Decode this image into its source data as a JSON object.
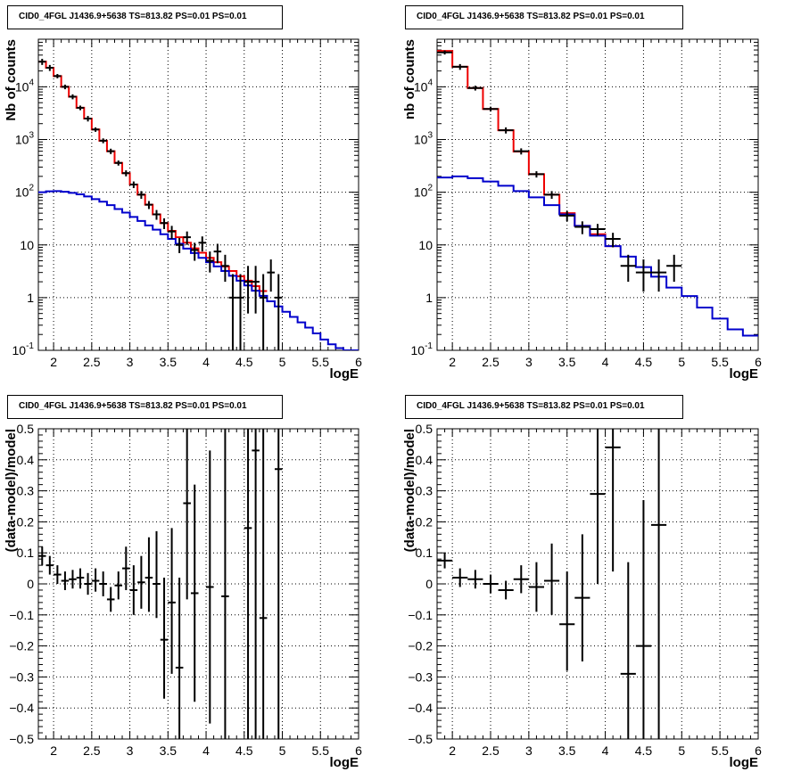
{
  "colors": {
    "data": "#000000",
    "total_model": "#ee0000",
    "component_model": "#0000cc",
    "grid": "#000000"
  },
  "chart_data": [
    {
      "type": "line",
      "title": "CID0_4FGL J1436.9+5638 TS=813.82 PS=0.01 PS=0.01",
      "xlabel": "logE",
      "ylabel": "Nb of counts",
      "yscale": "log",
      "xlim": [
        1.8,
        6
      ],
      "ylim": [
        0.1,
        80000
      ],
      "grid": true,
      "x_ticks": [
        "2",
        "2.5",
        "3",
        "3.5",
        "4",
        "4.5",
        "5",
        "5.5",
        "6"
      ],
      "y_ticks": [
        "10^-1",
        "1",
        "10",
        "10^2",
        "10^3",
        "10^4"
      ],
      "bins": {
        "start": 1.8,
        "width": 0.1
      },
      "series": [
        {
          "style": "step",
          "color": "total_model",
          "values": [
            30000,
            23000,
            16000,
            10000,
            6500,
            4000,
            2500,
            1550,
            950,
            600,
            360,
            230,
            140,
            90,
            58,
            38,
            26,
            18.5,
            14,
            11,
            8.6,
            7.1,
            5.7,
            4.7,
            3.9,
            3.2,
            2.55,
            2.1,
            1.65,
            1.33
          ]
        },
        {
          "style": "step",
          "color": "component_model",
          "values": [
            100,
            104,
            105,
            102,
            97,
            91,
            83,
            74,
            66,
            57,
            48,
            41,
            34,
            28.5,
            23.5,
            19.5,
            16,
            13,
            10.5,
            8.5,
            7,
            5.7,
            4.7,
            3.9,
            3.2,
            2.6,
            2.1,
            1.7,
            1.35,
            1.08,
            0.85,
            0.68,
            0.54,
            0.43,
            0.34,
            0.27,
            0.21,
            0.16,
            0.13,
            0.11,
            0.1,
            0.09
          ]
        },
        {
          "style": "errorbar",
          "color": "data",
          "points": [
            [
              1.85,
              30000,
              26000,
              34000
            ],
            [
              1.95,
              23000,
              20000,
              26000
            ],
            [
              2.05,
              16000,
              14500,
              17500
            ],
            [
              2.15,
              10000,
              9000,
              11000
            ],
            [
              2.25,
              6500,
              5800,
              7200
            ],
            [
              2.35,
              4000,
              3600,
              4400
            ],
            [
              2.45,
              2500,
              2200,
              2800
            ],
            [
              2.55,
              1550,
              1400,
              1700
            ],
            [
              2.65,
              950,
              850,
              1050
            ],
            [
              2.75,
              600,
              530,
              670
            ],
            [
              2.85,
              360,
              320,
              400
            ],
            [
              2.95,
              230,
              200,
              260
            ],
            [
              3.05,
              140,
              120,
              160
            ],
            [
              3.15,
              90,
              75,
              105
            ],
            [
              3.25,
              58,
              48,
              68
            ],
            [
              3.35,
              38,
              30,
              46
            ],
            [
              3.45,
              26,
              20,
              32
            ],
            [
              3.55,
              18,
              13,
              23
            ],
            [
              3.65,
              10,
              7,
              13.5
            ],
            [
              3.75,
              14,
              10,
              18
            ],
            [
              3.85,
              8,
              5,
              11
            ],
            [
              3.95,
              11,
              7.5,
              14.5
            ],
            [
              4.05,
              5,
              3,
              7.5
            ],
            [
              4.15,
              7.5,
              4.5,
              10.5
            ],
            [
              4.25,
              4,
              2,
              6.5
            ],
            [
              4.35,
              1,
              0.1,
              2.8
            ],
            [
              4.45,
              1,
              0.1,
              2.8
            ],
            [
              4.55,
              2,
              0.5,
              4
            ],
            [
              4.65,
              2,
              0.5,
              4
            ],
            [
              4.75,
              1,
              0.1,
              2.8
            ],
            [
              4.85,
              3,
              1.3,
              5.3
            ],
            [
              4.95,
              1,
              0.1,
              2.8
            ]
          ]
        }
      ]
    },
    {
      "type": "line",
      "title": "CID0_4FGL J1436.9+5638 TS=813.82 PS=0.01 PS=0.01",
      "xlabel": "logE",
      "ylabel": "nb of counts",
      "yscale": "log",
      "xlim": [
        1.8,
        6
      ],
      "ylim": [
        0.1,
        80000
      ],
      "grid": true,
      "x_ticks": [
        "2",
        "2.5",
        "3",
        "3.5",
        "4",
        "4.5",
        "5",
        "5.5",
        "6"
      ],
      "y_ticks": [
        "10^-1",
        "1",
        "10",
        "10^2",
        "10^3",
        "10^4"
      ],
      "bins": {
        "start": 1.8,
        "width": 0.2
      },
      "series": [
        {
          "style": "step",
          "color": "total_model",
          "values": [
            48000,
            24000,
            9500,
            3800,
            1500,
            590,
            220,
            90,
            40,
            23,
            16,
            9.5
          ]
        },
        {
          "style": "step",
          "color": "component_model",
          "values": [
            190,
            200,
            185,
            160,
            133,
            105,
            80,
            57,
            38,
            23,
            15,
            9.5,
            6,
            3.8,
            2.5,
            1.55,
            1.07,
            0.65,
            0.4,
            0.25,
            0.19
          ]
        },
        {
          "style": "errorbar",
          "color": "data",
          "points": [
            [
              1.9,
              45000,
              41000,
              49000
            ],
            [
              2.1,
              24000,
              21000,
              27000
            ],
            [
              2.3,
              9500,
              8500,
              10500
            ],
            [
              2.5,
              3800,
              3400,
              4200
            ],
            [
              2.7,
              1500,
              1300,
              1700
            ],
            [
              2.9,
              600,
              520,
              680
            ],
            [
              3.1,
              220,
              190,
              250
            ],
            [
              3.3,
              90,
              75,
              105
            ],
            [
              3.5,
              36,
              28,
              44
            ],
            [
              3.7,
              22,
              16,
              28
            ],
            [
              3.9,
              20,
              15,
              25
            ],
            [
              4.1,
              13,
              9,
              17
            ],
            [
              4.3,
              4,
              2,
              6.5
            ],
            [
              4.5,
              3,
              1.3,
              5.3
            ],
            [
              4.7,
              3,
              1.3,
              5.3
            ],
            [
              4.9,
              4,
              2,
              6.5
            ]
          ]
        }
      ]
    },
    {
      "type": "scatter",
      "title": "CID0_4FGL J1436.9+5638 TS=813.82 PS=0.01 PS=0.01",
      "xlabel": "logE",
      "ylabel": "(data-model)/model",
      "xlim": [
        1.8,
        6
      ],
      "ylim": [
        -0.5,
        0.5
      ],
      "grid": true,
      "x_ticks": [
        "2",
        "2.5",
        "3",
        "3.5",
        "4",
        "4.5",
        "5",
        "5.5",
        "6"
      ],
      "y_ticks": [
        "-0.5",
        "-0.4",
        "-0.3",
        "-0.2",
        "-0.1",
        "0",
        "0.1",
        "0.2",
        "0.3",
        "0.4",
        "0.5"
      ],
      "bin_width": 0.1,
      "points": [
        [
          1.85,
          0.09,
          0.06,
          0.12
        ],
        [
          1.95,
          0.06,
          0.03,
          0.09
        ],
        [
          2.05,
          0.03,
          0.0,
          0.06
        ],
        [
          2.15,
          0.01,
          -0.02,
          0.04
        ],
        [
          2.25,
          0.015,
          -0.015,
          0.045
        ],
        [
          2.35,
          0.02,
          -0.015,
          0.05
        ],
        [
          2.45,
          0.0,
          -0.035,
          0.035
        ],
        [
          2.55,
          0.01,
          -0.025,
          0.05
        ],
        [
          2.65,
          0.0,
          -0.04,
          0.04
        ],
        [
          2.75,
          -0.05,
          -0.09,
          -0.01
        ],
        [
          2.85,
          -0.005,
          -0.05,
          0.04
        ],
        [
          2.95,
          0.05,
          -0.02,
          0.12
        ],
        [
          3.05,
          -0.02,
          -0.1,
          0.06
        ],
        [
          3.15,
          0.005,
          -0.08,
          0.09
        ],
        [
          3.25,
          0.02,
          -0.09,
          0.15
        ],
        [
          3.35,
          0.0,
          -0.11,
          0.17
        ],
        [
          3.45,
          -0.18,
          -0.37,
          0.02
        ],
        [
          3.55,
          -0.06,
          -0.29,
          0.18
        ],
        [
          3.65,
          -0.27,
          -0.56,
          0.02
        ],
        [
          3.75,
          0.26,
          -0.05,
          0.56
        ],
        [
          3.85,
          -0.03,
          -0.38,
          0.32
        ],
        [
          4.05,
          -0.01,
          -0.45,
          0.43
        ],
        [
          4.25,
          -0.04,
          -0.56,
          0.56
        ],
        [
          4.55,
          0.18,
          -0.56,
          0.56
        ],
        [
          4.65,
          0.43,
          -0.56,
          0.56
        ],
        [
          4.75,
          -0.11,
          -0.56,
          0.56
        ],
        [
          4.95,
          0.37,
          -0.56,
          0.56
        ]
      ]
    },
    {
      "type": "scatter",
      "title": "CID0_4FGL J1436.9+5638 TS=813.82 PS=0.01 PS=0.01",
      "xlabel": "logE",
      "ylabel": "(data-model)/model",
      "xlim": [
        1.8,
        6
      ],
      "ylim": [
        -0.5,
        0.5
      ],
      "grid": true,
      "x_ticks": [
        "2",
        "2.5",
        "3",
        "3.5",
        "4",
        "4.5",
        "5",
        "5.5",
        "6"
      ],
      "y_ticks": [
        "-0.5",
        "-0.4",
        "-0.3",
        "-0.2",
        "-0.1",
        "0",
        "0.1",
        "0.2",
        "0.3",
        "0.4",
        "0.5"
      ],
      "bin_width": 0.2,
      "points": [
        [
          1.9,
          0.075,
          0.05,
          0.1
        ],
        [
          2.1,
          0.02,
          -0.01,
          0.05
        ],
        [
          2.3,
          0.015,
          -0.015,
          0.045
        ],
        [
          2.5,
          0.0,
          -0.03,
          0.03
        ],
        [
          2.7,
          -0.02,
          -0.05,
          0.01
        ],
        [
          2.9,
          0.015,
          -0.03,
          0.06
        ],
        [
          3.1,
          -0.01,
          -0.09,
          0.07
        ],
        [
          3.3,
          0.01,
          -0.1,
          0.13
        ],
        [
          3.5,
          -0.13,
          -0.28,
          0.04
        ],
        [
          3.7,
          -0.045,
          -0.25,
          0.16
        ],
        [
          3.9,
          0.29,
          0.0,
          0.56
        ],
        [
          4.1,
          0.44,
          0.04,
          0.56
        ],
        [
          4.3,
          -0.29,
          -0.56,
          0.07
        ],
        [
          4.5,
          -0.2,
          -0.56,
          0.27
        ],
        [
          4.7,
          0.19,
          -0.56,
          0.56
        ]
      ]
    }
  ]
}
